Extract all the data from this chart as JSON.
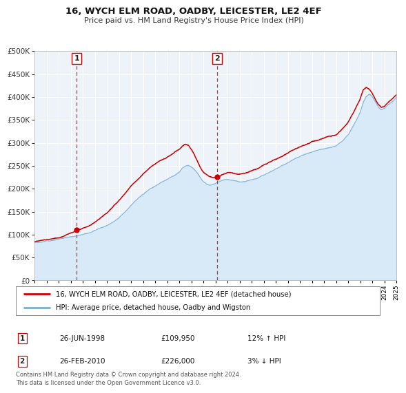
{
  "title": "16, WYCH ELM ROAD, OADBY, LEICESTER, LE2 4EF",
  "subtitle": "Price paid vs. HM Land Registry's House Price Index (HPI)",
  "legend_line1": "16, WYCH ELM ROAD, OADBY, LEICESTER, LE2 4EF (detached house)",
  "legend_line2": "HPI: Average price, detached house, Oadby and Wigston",
  "table_row1": [
    "1",
    "26-JUN-1998",
    "£109,950",
    "12% ↑ HPI"
  ],
  "table_row2": [
    "2",
    "26-FEB-2010",
    "£226,000",
    "3% ↓ HPI"
  ],
  "footnote": "Contains HM Land Registry data © Crown copyright and database right 2024.\nThis data is licensed under the Open Government Licence v3.0.",
  "sale1_year": 1998.49,
  "sale1_price": 109950,
  "sale2_year": 2010.13,
  "sale2_price": 226000,
  "price_line_color": "#cc0000",
  "hpi_line_color": "#7aafd4",
  "hpi_fill_color": "#d8eaf8",
  "sale_marker_color": "#cc0000",
  "vline_color": "#cc0000",
  "plot_bg_color": "#eef3fa",
  "grid_color": "#ffffff",
  "ylim": [
    0,
    500000
  ],
  "xlim_start": 1995,
  "xlim_end": 2025
}
